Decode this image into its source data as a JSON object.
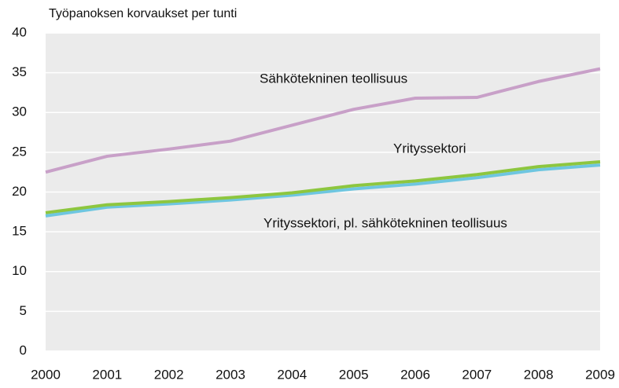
{
  "chart_data": {
    "type": "line",
    "title": "Työpanoksen korvaukset per tunti",
    "categories": [
      "2000",
      "2001",
      "2002",
      "2003",
      "2004",
      "2005",
      "2006",
      "2007",
      "2008",
      "2009"
    ],
    "series": [
      {
        "name": "Sähkötekninen teollisuus",
        "color": "#c8a0c8",
        "values": [
          22.5,
          24.5,
          25.4,
          26.4,
          28.4,
          30.4,
          31.8,
          31.9,
          33.9,
          35.5
        ]
      },
      {
        "name": "Yrityssektori",
        "color": "#8dc63f",
        "values": [
          17.4,
          18.4,
          18.8,
          19.3,
          19.9,
          20.8,
          21.4,
          22.2,
          23.2,
          23.8
        ]
      },
      {
        "name": "Yrityssektori, pl. sähkötekninen teollisuus",
        "color": "#6ec6e0",
        "values": [
          17.0,
          18.1,
          18.5,
          19.0,
          19.6,
          20.4,
          21.0,
          21.8,
          22.8,
          23.4
        ]
      }
    ],
    "ylim": [
      0,
      40
    ],
    "yticks": [
      0,
      5,
      10,
      15,
      20,
      25,
      30,
      35,
      40
    ],
    "grid": true
  }
}
